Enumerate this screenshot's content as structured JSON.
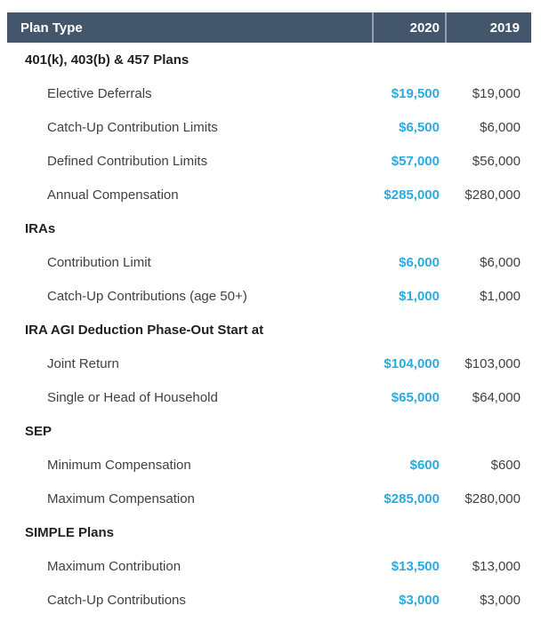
{
  "table": {
    "header": {
      "plan_type": "Plan Type",
      "col_2020": "2020",
      "col_2019": "2019"
    },
    "sections": [
      {
        "title": "401(k), 403(b) & 457 Plans",
        "rows": [
          {
            "label": "Elective Deferrals",
            "v2020": "$19,500",
            "v2019": "$19,000"
          },
          {
            "label": "Catch-Up Contribution Limits",
            "v2020": "$6,500",
            "v2019": "$6,000"
          },
          {
            "label": "Defined Contribution Limits",
            "v2020": "$57,000",
            "v2019": "$56,000"
          },
          {
            "label": "Annual Compensation",
            "v2020": "$285,000",
            "v2019": "$280,000"
          }
        ]
      },
      {
        "title": "IRAs",
        "rows": [
          {
            "label": "Contribution Limit",
            "v2020": "$6,000",
            "v2019": "$6,000"
          },
          {
            "label": "Catch-Up Contributions (age 50+)",
            "v2020": "$1,000",
            "v2019": "$1,000"
          }
        ]
      },
      {
        "title": "IRA AGI Deduction Phase-Out Start at",
        "rows": [
          {
            "label": "Joint Return",
            "v2020": "$104,000",
            "v2019": "$103,000"
          },
          {
            "label": "Single or Head of Household",
            "v2020": "$65,000",
            "v2019": "$64,000"
          }
        ]
      },
      {
        "title": "SEP",
        "rows": [
          {
            "label": "Minimum Compensation",
            "v2020": "$600",
            "v2019": "$600"
          },
          {
            "label": "Maximum Compensation",
            "v2020": "$285,000",
            "v2019": "$280,000"
          }
        ]
      },
      {
        "title": "SIMPLE Plans",
        "rows": [
          {
            "label": "Maximum Contribution",
            "v2020": "$13,500",
            "v2019": "$13,000"
          },
          {
            "label": "Catch-Up Contributions",
            "v2020": "$3,000",
            "v2019": "$3,000"
          }
        ]
      }
    ],
    "colors": {
      "header_bg": "#44566B",
      "header_text": "#FFFFFF",
      "divider": "#93A0AC",
      "accent_2020": "#29ABE2",
      "text": "#414042",
      "section_text": "#231F20"
    }
  }
}
